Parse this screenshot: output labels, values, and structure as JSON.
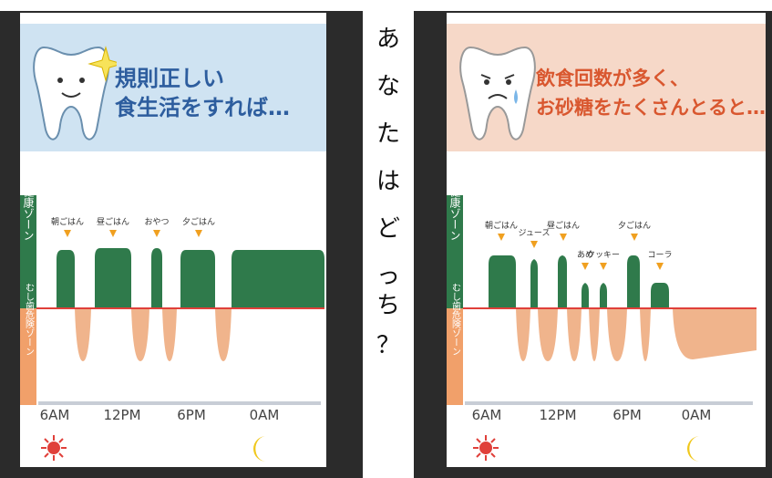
{
  "center": {
    "question": [
      "あ",
      "な",
      "た",
      "は",
      "ど",
      "っ",
      "ち",
      "？"
    ]
  },
  "left": {
    "title_line1": "規則正しい",
    "title_line2": "食生活をすれば…",
    "zone_healthy": "健康ゾーン",
    "zone_cavity": "むし歯危険ゾーン",
    "times": [
      "6AM",
      "12PM",
      "6PM",
      "0AM"
    ],
    "meals": [
      "朝ごはん",
      "昼ごはん",
      "おやつ",
      "夕ごはん"
    ]
  },
  "right": {
    "title_line1": "飲食回数が多く、",
    "title_line2": "お砂糖をたくさんとると…",
    "zone_healthy": "健康ゾーン",
    "zone_cavity": "むし歯危険ゾーン",
    "times": [
      "6AM",
      "12PM",
      "6PM",
      "0AM"
    ],
    "meals": [
      "朝ごはん",
      "ジュース",
      "昼ごはん",
      "あめ",
      "クッキー",
      "夕ごはん",
      "コーラ"
    ]
  },
  "colors": {
    "healthy": "#2f7a4b",
    "cavity": "#f0b48c",
    "line": "#e0403a",
    "arrow": "#f0a020",
    "blue": "#cfe3f2",
    "peach": "#f6d8c8"
  },
  "chart_data": [
    {
      "type": "area",
      "title": "規則正しい食生活をすれば…",
      "xlabel": "",
      "ylabel": "",
      "x_ticks": [
        "6AM",
        "12PM",
        "6PM",
        "0AM"
      ],
      "series": [],
      "events": [
        "朝ごはん",
        "昼ごはん",
        "おやつ",
        "夕ごはん"
      ],
      "zones": [
        "健康ゾーン",
        "むし歯危険ゾーン"
      ]
    },
    {
      "type": "area",
      "title": "飲食回数が多く、お砂糖をたくさんとると…",
      "xlabel": "",
      "ylabel": "",
      "x_ticks": [
        "6AM",
        "12PM",
        "6PM",
        "0AM"
      ],
      "series": [],
      "events": [
        "朝ごはん",
        "ジュース",
        "昼ごはん",
        "あめ",
        "クッキー",
        "夕ごはん",
        "コーラ"
      ],
      "zones": [
        "健康ゾーン",
        "むし歯危険ゾーン"
      ]
    }
  ]
}
